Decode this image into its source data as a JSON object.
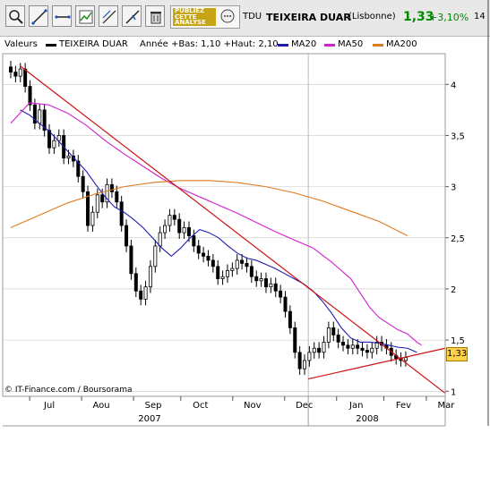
{
  "toolbar": {
    "ticker": "TDU",
    "name": "TEIXEIRA DUAR",
    "exchange": "(Lisbonne)",
    "price": "1,33",
    "change": "+3,10%",
    "extra": "14",
    "ad_text_1": "PUBLIEZ",
    "ad_text_2": "CETTE",
    "ad_text_3": "ANALYSE",
    "tools": [
      "magnifier-icon",
      "line-tool-icon",
      "horizontal-line-icon",
      "indicator-icon",
      "trend-tool-icon",
      "angle-tool-icon",
      "trash-icon"
    ]
  },
  "legend": {
    "valeurs": "Valeurs",
    "series_name": "TEIXEIRA DUAR",
    "range": "Année +Bas: 1,10 +Haut: 2,10",
    "ma20": "MA20",
    "ma50": "MA50",
    "ma200": "MA200"
  },
  "copyright": "© IT-Finance.com / Boursorama",
  "last_price_badge": "1,33",
  "colors": {
    "price": "#000000",
    "up_candle": "#ffffff",
    "ma20": "#1c1cb0",
    "ma50": "#d020d0",
    "ma200": "#e07a20",
    "trendline": "#cc1111",
    "grid": "#c8c8c8",
    "price_positive": "#008a00"
  },
  "chart_data": {
    "type": "line",
    "title": "TEIXEIRA DUAR",
    "y_ticks": [
      "4",
      "3,5",
      "3",
      "2,5",
      "2",
      "1,5",
      "1"
    ],
    "ylim": [
      0.95,
      4.3
    ],
    "x_month_labels": [
      "Jul",
      "Aou",
      "Sep",
      "Oct",
      "Nov",
      "Dec",
      "Jan",
      "Fev",
      "Mar"
    ],
    "x_year_labels": [
      "2007",
      "2008"
    ],
    "x_index_range": [
      0,
      86
    ],
    "month_tick_index": [
      4,
      15,
      26,
      36,
      47,
      58,
      69,
      79,
      88
    ],
    "year_divider_index": 63,
    "grid": true,
    "close": [
      4.12,
      4.08,
      4.15,
      3.98,
      3.8,
      3.62,
      3.75,
      3.55,
      3.38,
      3.45,
      3.5,
      3.28,
      3.3,
      3.25,
      3.1,
      2.95,
      2.62,
      2.75,
      2.92,
      2.85,
      3.02,
      2.95,
      2.85,
      2.62,
      2.42,
      2.15,
      1.98,
      1.9,
      2.02,
      2.22,
      2.42,
      2.55,
      2.62,
      2.72,
      2.68,
      2.55,
      2.6,
      2.52,
      2.42,
      2.35,
      2.32,
      2.28,
      2.22,
      2.1,
      2.12,
      2.18,
      2.2,
      2.28,
      2.25,
      2.22,
      2.12,
      2.08,
      2.1,
      2.02,
      2.05,
      1.98,
      1.92,
      1.78,
      1.62,
      1.38,
      1.22,
      1.3,
      1.38,
      1.42,
      1.38,
      1.48,
      1.62,
      1.55,
      1.48,
      1.45,
      1.42,
      1.45,
      1.42,
      1.4,
      1.38,
      1.42,
      1.48,
      1.45,
      1.42,
      1.35,
      1.32,
      1.3,
      1.33
    ],
    "series": [
      {
        "name": "MA20",
        "values": [
          3.75,
          3.7,
          3.62,
          3.55,
          3.45,
          3.35,
          3.25,
          3.15,
          3.02,
          2.9,
          2.8,
          2.75,
          2.68,
          2.6,
          2.5,
          2.4,
          2.32,
          2.4,
          2.5,
          2.58,
          2.55,
          2.5,
          2.42,
          2.35,
          2.3,
          2.28,
          2.24,
          2.2,
          2.15,
          2.1,
          2.05,
          1.98,
          1.88,
          1.76,
          1.62,
          1.52,
          1.48,
          1.48,
          1.47,
          1.45,
          1.43,
          1.42,
          1.4,
          1.38
        ],
        "x": [
          2,
          4,
          6,
          8,
          10,
          12,
          14,
          16,
          18,
          20,
          22,
          24,
          26,
          28,
          30,
          32,
          34,
          36,
          38,
          40,
          42,
          44,
          46,
          48,
          50,
          52,
          54,
          56,
          58,
          60,
          62,
          64,
          66,
          68,
          70,
          72,
          74,
          76,
          78,
          80,
          82,
          84,
          85,
          86
        ]
      },
      {
        "name": "MA50",
        "values": [
          3.62,
          3.82,
          3.8,
          3.72,
          3.6,
          3.45,
          3.32,
          3.2,
          3.08,
          2.98,
          2.9,
          2.82,
          2.74,
          2.65,
          2.56,
          2.48,
          2.4,
          2.33,
          2.26,
          2.18,
          2.1,
          1.96,
          1.82,
          1.72,
          1.66,
          1.6,
          1.56,
          1.52,
          1.48,
          1.45
        ],
        "x": [
          0,
          4,
          8,
          12,
          16,
          20,
          24,
          28,
          32,
          36,
          40,
          44,
          48,
          52,
          56,
          60,
          64,
          66,
          68,
          70,
          72,
          74,
          76,
          78,
          80,
          82,
          84,
          85,
          86,
          87
        ]
      },
      {
        "name": "MA200",
        "values": [
          2.6,
          2.72,
          2.84,
          2.93,
          3.0,
          3.04,
          3.06,
          3.06,
          3.04,
          3.0,
          2.94,
          2.86,
          2.76,
          2.66,
          2.52
        ],
        "x": [
          0,
          6,
          12,
          18,
          24,
          30,
          36,
          42,
          48,
          54,
          60,
          66,
          72,
          78,
          84
        ]
      }
    ],
    "trendlines": [
      {
        "from": [
          2,
          4.18
        ],
        "to": [
          92,
          0.98
        ]
      },
      {
        "from": [
          63,
          1.12
        ],
        "to": [
          92,
          1.42
        ]
      }
    ]
  }
}
